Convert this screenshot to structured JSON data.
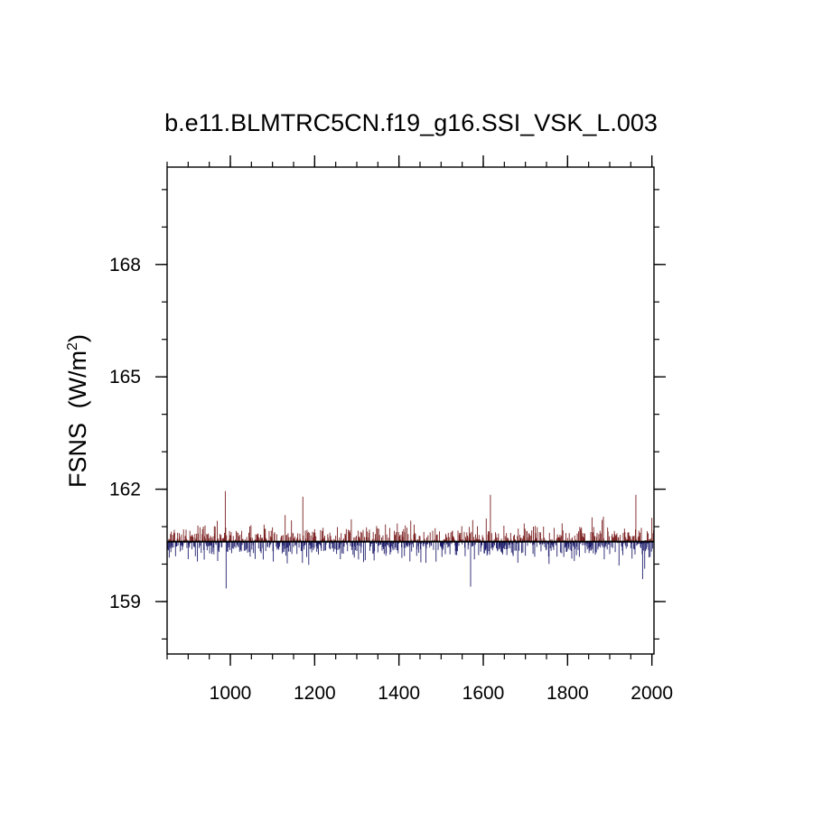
{
  "chart_data": {
    "type": "bar",
    "title": "b.e11.BLMTRC5CN.f19_g16.SSI_VSK_L.003",
    "xlabel": "",
    "ylabel": "FSNS",
    "ylabel_units": "(W/m",
    "ylabel_units_sup": "2",
    "ylabel_units_close": ")",
    "xlim": [
      850,
      2005
    ],
    "ylim": [
      157.6,
      170.6
    ],
    "baseline": 160.6,
    "x_ticks": [
      1000,
      1200,
      1400,
      1600,
      1800,
      2000
    ],
    "x_tick_labels": [
      "1000",
      "1200",
      "1400",
      "1600",
      "1800",
      "2000"
    ],
    "y_ticks": [
      159,
      162,
      165,
      168
    ],
    "y_tick_labels": [
      "159",
      "162",
      "165",
      "168"
    ],
    "grid": false,
    "above_color": "#7a1f1f",
    "below_color": "#1f1f6e",
    "annual_series": {
      "start_year": 850,
      "end_year": 2005,
      "description": "annual-mean FSNS anomalies about baseline",
      "notable_values": [
        {
          "x": 988,
          "y": 161.95
        },
        {
          "x": 990,
          "y": 159.35
        },
        {
          "x": 1172,
          "y": 161.8
        },
        {
          "x": 1570,
          "y": 159.4
        },
        {
          "x": 1617,
          "y": 161.85
        },
        {
          "x": 1962,
          "y": 161.85
        },
        {
          "x": 1978,
          "y": 159.6
        }
      ]
    }
  }
}
